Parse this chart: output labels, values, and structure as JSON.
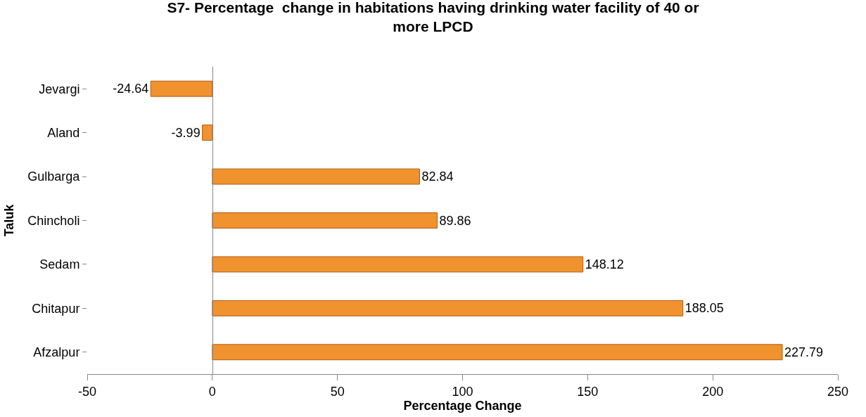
{
  "chart_data": {
    "type": "bar",
    "orientation": "horizontal",
    "title": "S7- Percentage  change in habitations having drinking water facility of 40 or more LPCD",
    "xlabel": "Percentage Change",
    "ylabel": "Taluk",
    "categories": [
      "Jevargi",
      "Aland",
      "Gulbarga",
      "Chincholi",
      "Sedam",
      "Chitapur",
      "Afzalpur"
    ],
    "values": [
      -24.64,
      -3.99,
      82.84,
      89.86,
      148.12,
      188.05,
      227.79
    ],
    "color": "#f0922e",
    "data_labels": true,
    "xlim": [
      -50,
      250
    ],
    "xticks": [
      -50,
      0,
      50,
      100,
      150,
      200,
      250
    ]
  }
}
